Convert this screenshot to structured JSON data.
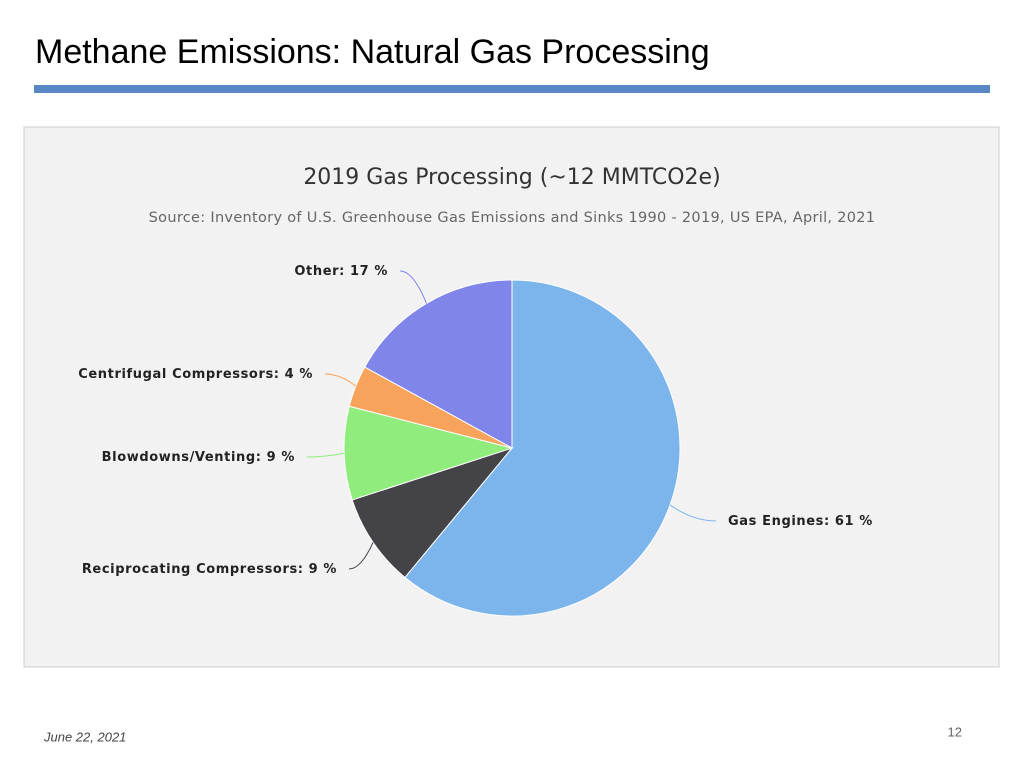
{
  "slide_title": "Methane Emissions: Natural Gas Processing",
  "chart_data": {
    "type": "pie",
    "title": "2019 Gas Processing (~12 MMTCO2e)",
    "subtitle": "Source: Inventory of U.S. Greenhouse Gas Emissions and Sinks 1990 - 2019, US EPA, April, 2021",
    "categories": [
      "Gas Engines:",
      "Reciprocating Compressors:",
      "Blowdowns/Venting:",
      "Centrifugal Compressors:",
      "Other:"
    ],
    "values": [
      61,
      9,
      9,
      4,
      17
    ],
    "value_labels": [
      "61 %",
      "9 %",
      "9 %",
      "4 %",
      "17 %"
    ],
    "colors": [
      "#7cb5ec",
      "#434348",
      "#90ed7d",
      "#f7a35c",
      "#8085e9"
    ]
  },
  "footer": {
    "date": "June 22, 2021",
    "page": "12"
  }
}
